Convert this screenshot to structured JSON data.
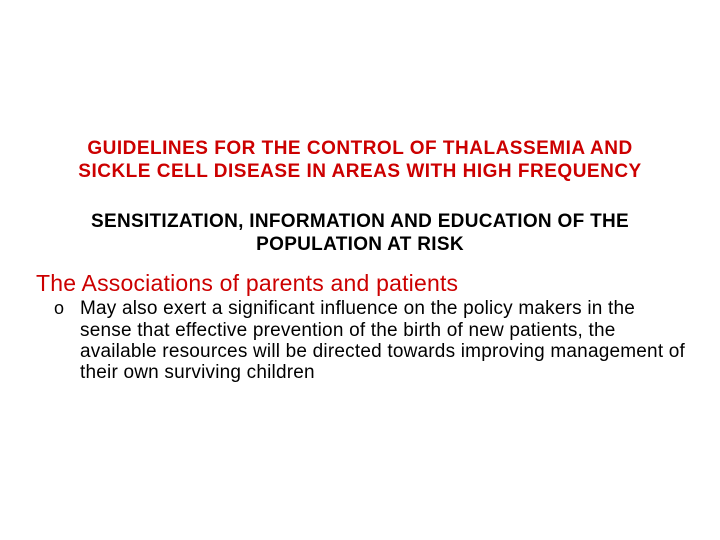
{
  "colors": {
    "title_color": "#cc0000",
    "body_color": "#000000",
    "section_header_color": "#cc0000",
    "background": "#ffffff"
  },
  "typography": {
    "font_family": "Comic Sans MS",
    "title_fontsize": 19,
    "title_weight": "bold",
    "subtitle_fontsize": 19,
    "subtitle_weight": "bold",
    "section_header_fontsize": 23,
    "bullet_fontsize": 19
  },
  "title": {
    "line1": "GUIDELINES FOR THE CONTROL OF THALASSEMIA AND",
    "line2": "SICKLE CELL DISEASE IN AREAS WITH HIGH FREQUENCY"
  },
  "subtitle": "SENSITIZATION, INFORMATION AND EDUCATION OF THE POPULATION AT RISK",
  "section_header": "The Associations of parents and patients",
  "bullets": [
    {
      "marker": "o",
      "text": "May also exert a significant influence on the policy makers in the sense that effective prevention of the birth of new patients, the available resources will be directed towards improving management of their own surviving children"
    }
  ]
}
